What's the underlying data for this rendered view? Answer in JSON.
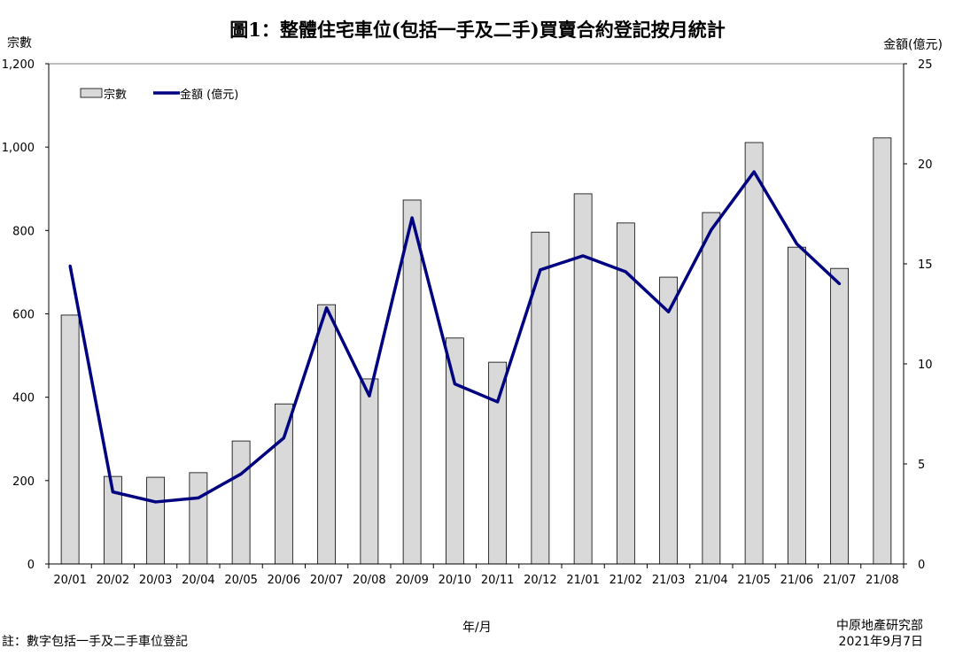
{
  "chart_data": {
    "type": "bar",
    "title": "圖1：整體住宅車位(包括一手及二手)買賣合約登記按月統計",
    "xlabel": "年/月",
    "ylabel": "宗數",
    "y2label": "金額(億元)",
    "ylim": [
      0,
      1200
    ],
    "y2lim": [
      0,
      25
    ],
    "yticks": [
      "0",
      "200",
      "400",
      "600",
      "800",
      "1,000",
      "1,200"
    ],
    "y2ticks": [
      "0",
      "5",
      "10",
      "15",
      "20",
      "25"
    ],
    "grid": false,
    "legend_position": "top-left",
    "categories": [
      "20/01",
      "20/02",
      "20/03",
      "20/04",
      "20/05",
      "20/06",
      "20/07",
      "20/08",
      "20/09",
      "20/10",
      "20/11",
      "20/12",
      "21/01",
      "21/02",
      "21/03",
      "21/04",
      "21/05",
      "21/06",
      "21/07",
      "21/08"
    ],
    "series": [
      {
        "name": "宗數",
        "type": "bar",
        "axis": "left",
        "color": "#d9d9d9",
        "values": [
          597,
          210,
          208,
          219,
          295,
          384,
          622,
          444,
          873,
          542,
          484,
          796,
          888,
          818,
          688,
          843,
          1011,
          760,
          709,
          1022
        ]
      },
      {
        "name": "金額 (億元)",
        "type": "line",
        "axis": "right",
        "color": "#000080",
        "values": [
          14.9,
          3.6,
          3.1,
          3.3,
          4.5,
          6.3,
          12.8,
          8.4,
          17.3,
          9.0,
          8.1,
          14.7,
          15.4,
          14.6,
          12.6,
          16.7,
          19.6,
          16.0,
          14.0,
          null
        ]
      }
    ]
  },
  "footer": {
    "note": "註：數字包括一手及二手車位登記",
    "source": "中原地產研究部",
    "date": "2021年9月7日"
  }
}
